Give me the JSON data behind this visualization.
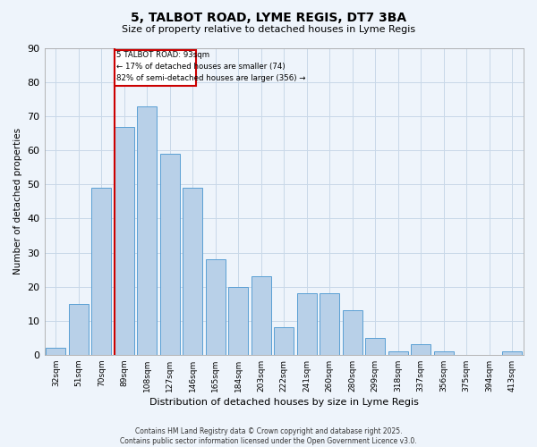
{
  "title": "5, TALBOT ROAD, LYME REGIS, DT7 3BA",
  "subtitle": "Size of property relative to detached houses in Lyme Regis",
  "xlabel": "Distribution of detached houses by size in Lyme Regis",
  "ylabel": "Number of detached properties",
  "categories": [
    "32sqm",
    "51sqm",
    "70sqm",
    "89sqm",
    "108sqm",
    "127sqm",
    "146sqm",
    "165sqm",
    "184sqm",
    "203sqm",
    "222sqm",
    "241sqm",
    "260sqm",
    "280sqm",
    "299sqm",
    "318sqm",
    "337sqm",
    "356sqm",
    "375sqm",
    "394sqm",
    "413sqm"
  ],
  "values": [
    2,
    15,
    49,
    67,
    73,
    59,
    49,
    28,
    20,
    23,
    8,
    18,
    18,
    13,
    5,
    1,
    3,
    1,
    0,
    0,
    1
  ],
  "bar_color": "#b8d0e8",
  "bar_edge_color": "#5a9fd4",
  "grid_color": "#c8d8e8",
  "background_color": "#eef4fb",
  "marker_index": 3,
  "marker_label": "5 TALBOT ROAD: 93sqm",
  "annotation_line1": "← 17% of detached houses are smaller (74)",
  "annotation_line2": "82% of semi-detached houses are larger (356) →",
  "marker_color": "#cc0000",
  "box_color": "#cc0000",
  "ylim": [
    0,
    90
  ],
  "yticks": [
    0,
    10,
    20,
    30,
    40,
    50,
    60,
    70,
    80,
    90
  ],
  "footer_line1": "Contains HM Land Registry data © Crown copyright and database right 2025.",
  "footer_line2": "Contains public sector information licensed under the Open Government Licence v3.0."
}
